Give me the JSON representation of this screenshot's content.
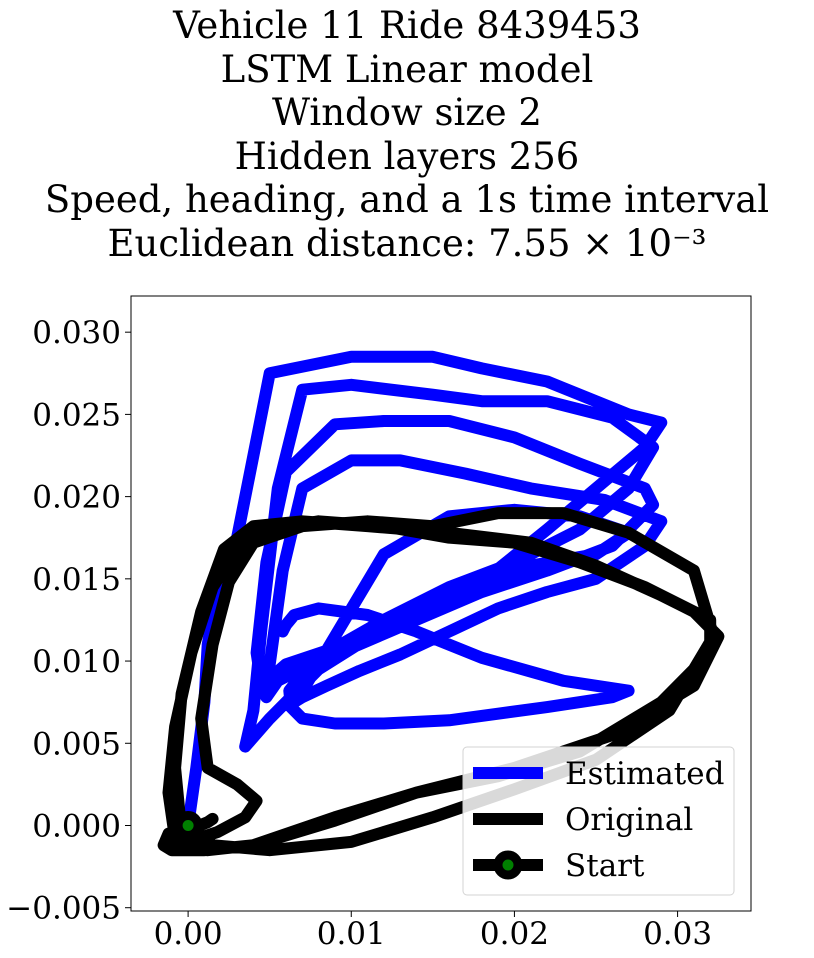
{
  "title_lines": [
    "Vehicle 11 Ride 8439453",
    "LSTM Linear model",
    "Window size 2",
    "Hidden layers 256",
    "Speed, heading, and a 1s time interval",
    "Euclidean distance: 7.55 × 10⁻³"
  ],
  "chart_data": {
    "type": "line",
    "title": "Vehicle 11 Ride 8439453\nLSTM Linear model\nWindow size 2\nHidden layers 256\nSpeed, heading, and a 1s time interval\nEuclidean distance: 7.55 × 10⁻³",
    "xlabel": "",
    "ylabel": "",
    "xlim": [
      -0.0035,
      0.0345
    ],
    "ylim": [
      -0.0052,
      0.0322
    ],
    "xticks": [
      0.0,
      0.01,
      0.02,
      0.03
    ],
    "xtick_labels": [
      "0.00",
      "0.01",
      "0.02",
      "0.03"
    ],
    "yticks": [
      -0.005,
      0.0,
      0.005,
      0.01,
      0.015,
      0.02,
      0.025,
      0.03
    ],
    "ytick_labels": [
      "−0.005",
      "0.000",
      "0.005",
      "0.010",
      "0.015",
      "0.020",
      "0.025",
      "0.030"
    ],
    "grid": false,
    "legend_position": "lower-right",
    "legend_labels": [
      "Estimated",
      "Original",
      "Start"
    ],
    "colors": {
      "estimated": "#0000ff",
      "original": "#000000",
      "start_marker_fill": "#008000",
      "start_marker_edge": "#000000"
    },
    "series": [
      {
        "name": "Estimated",
        "x": [
          0.0,
          0.0005,
          0.001,
          0.0012,
          0.0018,
          0.0025,
          0.003,
          0.005,
          0.01,
          0.015,
          0.018,
          0.022,
          0.027,
          0.029,
          0.028,
          0.025,
          0.022,
          0.018,
          0.012,
          0.008,
          0.005,
          0.0035,
          0.004,
          0.0045,
          0.0055,
          0.007,
          0.01,
          0.015,
          0.018,
          0.022,
          0.026,
          0.0285,
          0.027,
          0.024,
          0.02,
          0.016,
          0.012,
          0.009,
          0.006,
          0.0045,
          0.0042,
          0.0048,
          0.006,
          0.009,
          0.012,
          0.016,
          0.02,
          0.024,
          0.028,
          0.0285,
          0.026,
          0.022,
          0.018,
          0.014,
          0.01,
          0.0075,
          0.0055,
          0.0048,
          0.005,
          0.0058,
          0.007,
          0.01,
          0.013,
          0.017,
          0.021,
          0.0255,
          0.029,
          0.028,
          0.025,
          0.022,
          0.019,
          0.016,
          0.013,
          0.0105,
          0.0085,
          0.007,
          0.0065,
          0.0072,
          0.009,
          0.012,
          0.016,
          0.02,
          0.024,
          0.027,
          0.025,
          0.021,
          0.018,
          0.015,
          0.012,
          0.01,
          0.0085,
          0.007,
          0.0062,
          0.0063,
          0.007,
          0.009,
          0.012,
          0.016,
          0.019,
          0.022,
          0.026,
          0.027,
          0.023,
          0.018,
          0.014,
          0.011,
          0.008,
          0.0065,
          0.006,
          0.0058
        ],
        "y": [
          0.0,
          0.0035,
          0.0075,
          0.011,
          0.0145,
          0.0165,
          0.0175,
          0.0275,
          0.0285,
          0.0285,
          0.0278,
          0.027,
          0.025,
          0.0245,
          0.023,
          0.0205,
          0.018,
          0.0148,
          0.012,
          0.0095,
          0.0065,
          0.0048,
          0.007,
          0.012,
          0.0205,
          0.0265,
          0.0268,
          0.0262,
          0.0258,
          0.0258,
          0.0248,
          0.023,
          0.0205,
          0.018,
          0.016,
          0.0145,
          0.0125,
          0.0108,
          0.0098,
          0.0085,
          0.0105,
          0.016,
          0.0215,
          0.0244,
          0.0246,
          0.0246,
          0.0236,
          0.022,
          0.0205,
          0.0195,
          0.017,
          0.0155,
          0.0142,
          0.0125,
          0.0108,
          0.0098,
          0.0088,
          0.0078,
          0.0098,
          0.0155,
          0.0205,
          0.0222,
          0.0222,
          0.0214,
          0.0205,
          0.0198,
          0.0185,
          0.017,
          0.015,
          0.0142,
          0.0132,
          0.0118,
          0.0104,
          0.0094,
          0.0085,
          0.0078,
          0.0075,
          0.0085,
          0.0115,
          0.0165,
          0.0188,
          0.0192,
          0.0188,
          0.0178,
          0.0165,
          0.0158,
          0.0148,
          0.0138,
          0.0125,
          0.0112,
          0.0102,
          0.0092,
          0.0082,
          0.0072,
          0.0065,
          0.0062,
          0.0062,
          0.0064,
          0.0068,
          0.0072,
          0.0078,
          0.0082,
          0.0088,
          0.0102,
          0.0118,
          0.0128,
          0.0132,
          0.0128,
          0.0122,
          0.0118
        ]
      },
      {
        "name": "Original",
        "x": [
          0.0,
          -0.0012,
          -0.0015,
          -0.001,
          0.001,
          0.004,
          0.009,
          0.014,
          0.02,
          0.026,
          0.031,
          0.0325,
          0.031,
          0.028,
          0.024,
          0.02,
          0.016,
          0.012,
          0.008,
          0.005,
          0.003,
          0.0015,
          0.0002,
          -0.0008,
          -0.0012,
          -0.0008,
          0.0012,
          0.004,
          0.009,
          0.014,
          0.019,
          0.024,
          0.029,
          0.032,
          0.032,
          0.029,
          0.025,
          0.021,
          0.016,
          0.011,
          0.007,
          0.004,
          0.0022,
          0.0008,
          -0.0004,
          -0.0008,
          -0.0005,
          0.0015,
          0.005,
          0.01,
          0.015,
          0.02,
          0.025,
          0.0295,
          0.0322,
          0.031,
          0.027,
          0.023,
          0.019,
          0.015,
          0.011,
          0.007,
          0.004,
          0.0025,
          0.0015,
          0.0008,
          0.0012,
          0.003,
          0.0042,
          0.0035,
          0.0018,
          0.0006,
          0.0,
          0.0002,
          0.0012,
          0.0015,
          0.0012
        ],
        "y": [
          0.0,
          -0.0005,
          -0.0012,
          -0.0015,
          -0.0015,
          -0.0012,
          0.0005,
          0.002,
          0.0035,
          0.0055,
          0.0085,
          0.0115,
          0.013,
          0.0145,
          0.016,
          0.0172,
          0.0175,
          0.0182,
          0.0185,
          0.018,
          0.0168,
          0.0145,
          0.0105,
          0.006,
          0.002,
          -0.0008,
          -0.0015,
          -0.0012,
          0.0003,
          0.002,
          0.003,
          0.0045,
          0.0075,
          0.0105,
          0.0125,
          0.014,
          0.0158,
          0.0172,
          0.0178,
          0.0182,
          0.0185,
          0.0182,
          0.0168,
          0.013,
          0.008,
          0.0035,
          0.0005,
          -0.0012,
          -0.0015,
          -0.001,
          0.0005,
          0.0022,
          0.004,
          0.007,
          0.0115,
          0.0155,
          0.0178,
          0.019,
          0.019,
          0.0182,
          0.0185,
          0.0182,
          0.0172,
          0.0148,
          0.011,
          0.0065,
          0.0035,
          0.0025,
          0.0015,
          0.0005,
          -0.0004,
          -0.0008,
          -0.0006,
          -0.0002,
          0.0002,
          0.0004,
          0.0002
        ]
      },
      {
        "name": "Start",
        "x": [
          0.0
        ],
        "y": [
          0.0
        ]
      }
    ]
  }
}
